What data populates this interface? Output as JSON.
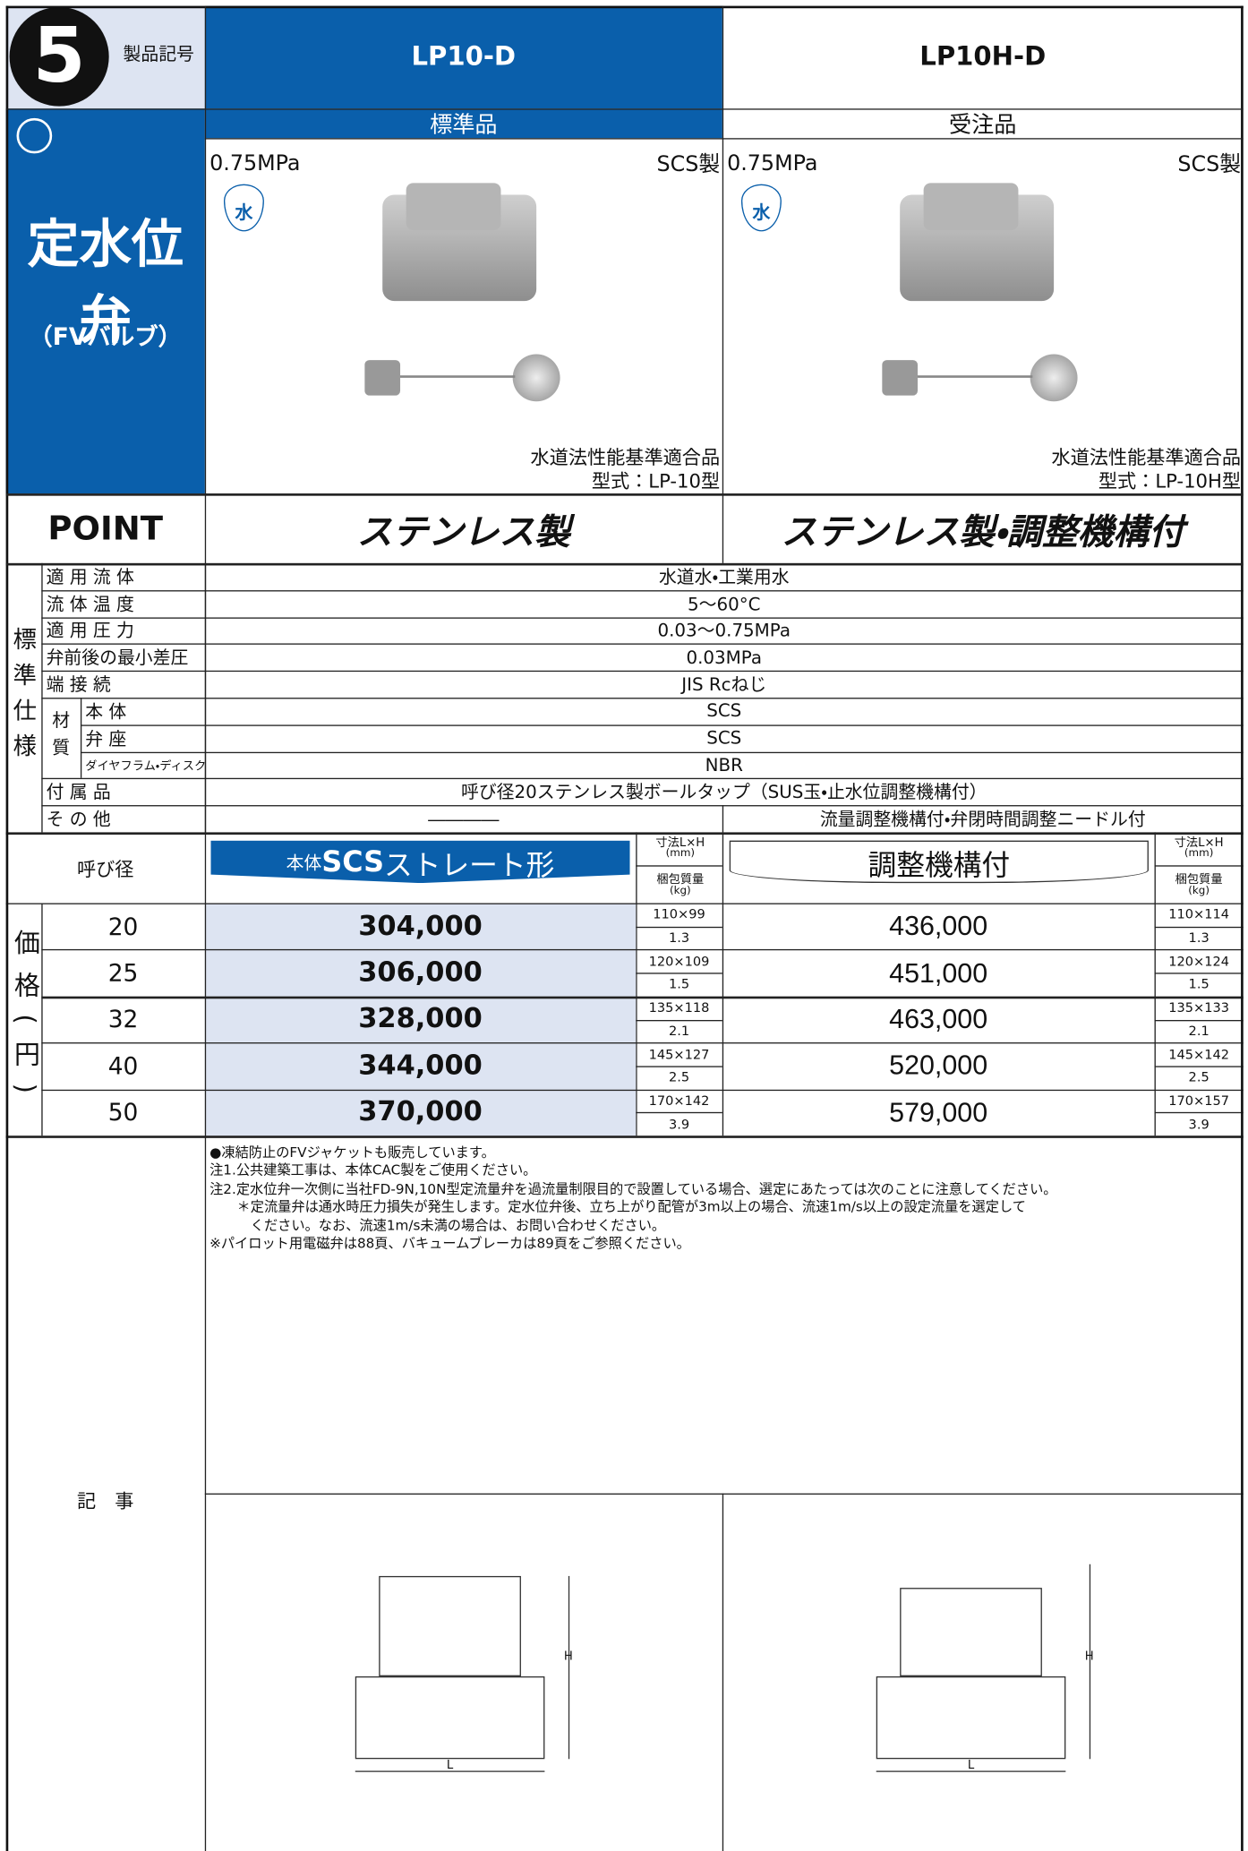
{
  "header": {
    "number": "5",
    "code_label": "製品記号",
    "category": "定水位弁",
    "category_sub": "（FVバルブ）",
    "point_label": "POINT"
  },
  "products": [
    {
      "code": "LP10-D",
      "availability": "標準品",
      "pressure": "0.75MPa",
      "material": "SCS製",
      "water_icon": "水",
      "certification": "水道法性能基準適合品",
      "model": "型式：LP-10型",
      "point": "ステンレス製"
    },
    {
      "code": "LP10H-D",
      "availability": "受注品",
      "pressure": "0.75MPa",
      "material": "SCS製",
      "water_icon": "水",
      "certification": "水道法性能基準適合品",
      "model": "型式：LP-10H型",
      "point": "ステンレス製・調整機構付"
    }
  ],
  "spec": {
    "group_label": "標準仕様",
    "material_label": "材質",
    "rows": [
      {
        "label": "適 用 流 体",
        "values": [
          "水道水・工業用水"
        ]
      },
      {
        "label": "流 体 温 度",
        "values": [
          "5〜60°C"
        ]
      },
      {
        "label": "適 用 圧 力",
        "values": [
          "0.03〜0.75MPa"
        ]
      },
      {
        "label": "弁前後の最小差圧",
        "values": [
          "0.03MPa"
        ]
      },
      {
        "label": "端 接 続",
        "values": [
          "JIS Rcねじ"
        ]
      },
      {
        "label": "本 体",
        "values": [
          "SCS"
        ],
        "material": true
      },
      {
        "label": "弁 座",
        "values": [
          "SCS"
        ],
        "material": true
      },
      {
        "label": "ダイヤフラム・ディスク",
        "values": [
          "NBR"
        ],
        "material": true
      },
      {
        "label": "付 属 品",
        "values": [
          "呼び径20ステンレス製ボールタップ（SUS玉・止水位調整機構付）"
        ]
      },
      {
        "label": "そ の 他",
        "values": [
          "――――",
          "流量調整機構付・弁閉時間調整ニードル付"
        ]
      }
    ]
  },
  "price": {
    "group_label": "価格(円)",
    "size_label": "呼び径",
    "columns": [
      {
        "title_prefix": "本体",
        "title_bold": "SCS",
        "title_rest": "ストレート形"
      },
      {
        "title": "調整機構付"
      }
    ],
    "dim_label": "寸法L×H",
    "dim_unit": "(mm)",
    "weight_label": "梱包質量",
    "weight_unit": "(kg)",
    "rows": [
      {
        "size": "20",
        "prices": [
          "304,000",
          "436,000"
        ],
        "dims": [
          "110×99",
          "110×114"
        ],
        "weights": [
          "1.3",
          "1.3"
        ]
      },
      {
        "size": "25",
        "prices": [
          "306,000",
          "451,000"
        ],
        "dims": [
          "120×109",
          "120×124"
        ],
        "weights": [
          "1.5",
          "1.5"
        ]
      },
      {
        "size": "32",
        "prices": [
          "328,000",
          "463,000"
        ],
        "dims": [
          "135×118",
          "135×133"
        ],
        "weights": [
          "2.1",
          "2.1"
        ]
      },
      {
        "size": "40",
        "prices": [
          "344,000",
          "520,000"
        ],
        "dims": [
          "145×127",
          "145×142"
        ],
        "weights": [
          "2.5",
          "2.5"
        ]
      },
      {
        "size": "50",
        "prices": [
          "370,000",
          "579,000"
        ],
        "dims": [
          "170×142",
          "170×157"
        ],
        "weights": [
          "3.9",
          "3.9"
        ]
      }
    ]
  },
  "notes": {
    "label": "記　事",
    "lines": [
      "●凍結防止のFVジャケットも販売しています。",
      "注1.公共建築工事は、本体CAC製をご使用ください。",
      "注2.定水位弁一次側に当社FD-9N,10N型定流量弁を過流量制限目的で設置している場合、選定にあたっては次のことに注意してください。",
      "　　＊定流量弁は通水時圧力損失が発生します。定水位弁後、立ち上がり配管が3m以上の場合、流速1m/s以上の設定流量を選定して",
      "　　　ください。なお、流速1m/s未満の場合は、お問い合わせください。",
      "※パイロット用電磁弁は88頁、バキュームブレーカは89頁をご参照ください。"
    ]
  },
  "drawings": {
    "height_label": "H",
    "length_label": "L"
  }
}
